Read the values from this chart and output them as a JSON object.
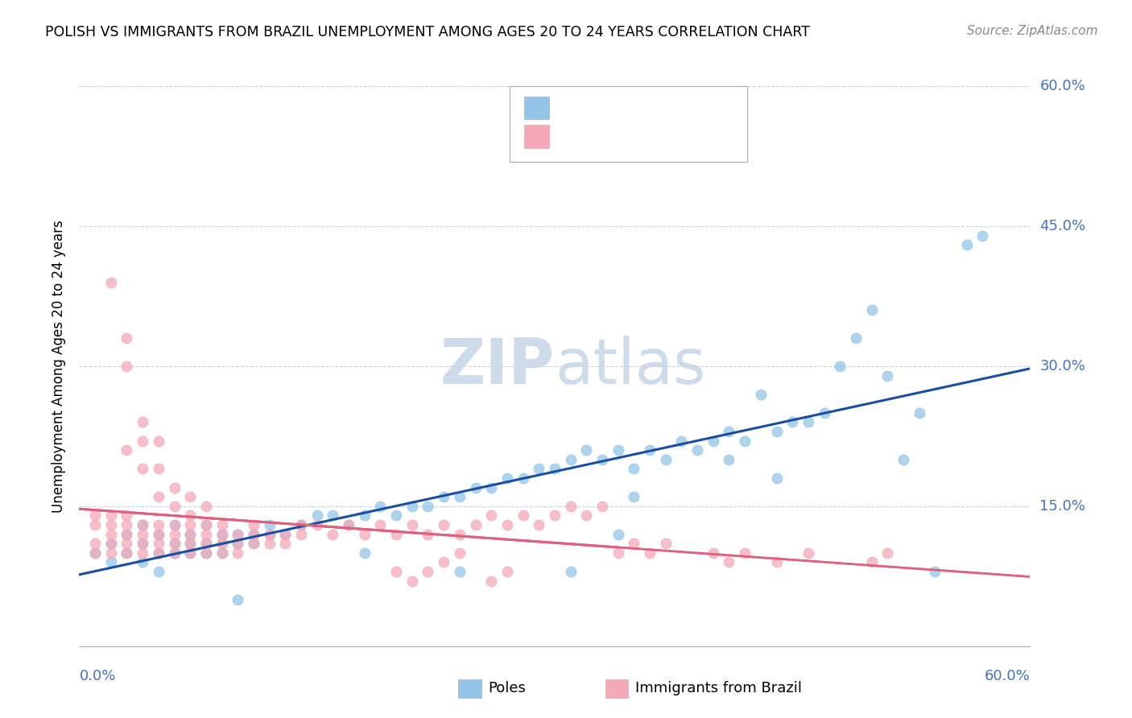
{
  "title": "POLISH VS IMMIGRANTS FROM BRAZIL UNEMPLOYMENT AMONG AGES 20 TO 24 YEARS CORRELATION CHART",
  "source": "Source: ZipAtlas.com",
  "ylabel": "Unemployment Among Ages 20 to 24 years",
  "xlim": [
    0.0,
    0.6
  ],
  "ylim": [
    0.0,
    0.6
  ],
  "yticks": [
    0.0,
    0.15,
    0.3,
    0.45,
    0.6
  ],
  "ytick_labels": [
    "",
    "15.0%",
    "30.0%",
    "45.0%",
    "60.0%"
  ],
  "color_poles": "#92c5e8",
  "color_brazil": "#f4a8b8",
  "poles_line_color": "#1a4fa0",
  "brazil_line_color": "#e06080",
  "brazil_dash_color": "#e08898",
  "watermark_color": "#c8d8e8",
  "poles_scatter": [
    [
      0.01,
      0.1
    ],
    [
      0.02,
      0.09
    ],
    [
      0.02,
      0.11
    ],
    [
      0.03,
      0.1
    ],
    [
      0.03,
      0.12
    ],
    [
      0.04,
      0.09
    ],
    [
      0.04,
      0.11
    ],
    [
      0.04,
      0.13
    ],
    [
      0.05,
      0.1
    ],
    [
      0.05,
      0.12
    ],
    [
      0.05,
      0.08
    ],
    [
      0.06,
      0.11
    ],
    [
      0.06,
      0.1
    ],
    [
      0.06,
      0.13
    ],
    [
      0.07,
      0.11
    ],
    [
      0.07,
      0.1
    ],
    [
      0.07,
      0.12
    ],
    [
      0.08,
      0.11
    ],
    [
      0.08,
      0.13
    ],
    [
      0.08,
      0.1
    ],
    [
      0.09,
      0.12
    ],
    [
      0.09,
      0.11
    ],
    [
      0.09,
      0.1
    ],
    [
      0.1,
      0.12
    ],
    [
      0.1,
      0.11
    ],
    [
      0.1,
      0.05
    ],
    [
      0.11,
      0.12
    ],
    [
      0.11,
      0.11
    ],
    [
      0.12,
      0.13
    ],
    [
      0.12,
      0.12
    ],
    [
      0.13,
      0.12
    ],
    [
      0.14,
      0.13
    ],
    [
      0.15,
      0.14
    ],
    [
      0.16,
      0.14
    ],
    [
      0.17,
      0.13
    ],
    [
      0.18,
      0.14
    ],
    [
      0.18,
      0.1
    ],
    [
      0.19,
      0.15
    ],
    [
      0.2,
      0.14
    ],
    [
      0.21,
      0.15
    ],
    [
      0.22,
      0.15
    ],
    [
      0.23,
      0.16
    ],
    [
      0.24,
      0.16
    ],
    [
      0.24,
      0.08
    ],
    [
      0.25,
      0.17
    ],
    [
      0.26,
      0.17
    ],
    [
      0.27,
      0.18
    ],
    [
      0.28,
      0.18
    ],
    [
      0.29,
      0.19
    ],
    [
      0.3,
      0.19
    ],
    [
      0.31,
      0.2
    ],
    [
      0.31,
      0.08
    ],
    [
      0.32,
      0.21
    ],
    [
      0.33,
      0.2
    ],
    [
      0.34,
      0.21
    ],
    [
      0.34,
      0.12
    ],
    [
      0.35,
      0.19
    ],
    [
      0.35,
      0.16
    ],
    [
      0.36,
      0.21
    ],
    [
      0.37,
      0.2
    ],
    [
      0.38,
      0.22
    ],
    [
      0.39,
      0.21
    ],
    [
      0.4,
      0.22
    ],
    [
      0.41,
      0.23
    ],
    [
      0.41,
      0.2
    ],
    [
      0.42,
      0.22
    ],
    [
      0.43,
      0.27
    ],
    [
      0.44,
      0.23
    ],
    [
      0.44,
      0.18
    ],
    [
      0.45,
      0.24
    ],
    [
      0.46,
      0.24
    ],
    [
      0.47,
      0.25
    ],
    [
      0.48,
      0.3
    ],
    [
      0.49,
      0.33
    ],
    [
      0.5,
      0.36
    ],
    [
      0.51,
      0.29
    ],
    [
      0.52,
      0.2
    ],
    [
      0.53,
      0.25
    ],
    [
      0.54,
      0.08
    ],
    [
      0.56,
      0.43
    ],
    [
      0.57,
      0.44
    ]
  ],
  "brazil_scatter": [
    [
      0.01,
      0.14
    ],
    [
      0.01,
      0.13
    ],
    [
      0.01,
      0.11
    ],
    [
      0.01,
      0.1
    ],
    [
      0.02,
      0.14
    ],
    [
      0.02,
      0.13
    ],
    [
      0.02,
      0.12
    ],
    [
      0.02,
      0.11
    ],
    [
      0.02,
      0.1
    ],
    [
      0.02,
      0.39
    ],
    [
      0.03,
      0.14
    ],
    [
      0.03,
      0.13
    ],
    [
      0.03,
      0.12
    ],
    [
      0.03,
      0.11
    ],
    [
      0.03,
      0.1
    ],
    [
      0.03,
      0.3
    ],
    [
      0.03,
      0.33
    ],
    [
      0.03,
      0.21
    ],
    [
      0.04,
      0.13
    ],
    [
      0.04,
      0.12
    ],
    [
      0.04,
      0.11
    ],
    [
      0.04,
      0.1
    ],
    [
      0.04,
      0.22
    ],
    [
      0.04,
      0.19
    ],
    [
      0.04,
      0.24
    ],
    [
      0.05,
      0.13
    ],
    [
      0.05,
      0.12
    ],
    [
      0.05,
      0.11
    ],
    [
      0.05,
      0.1
    ],
    [
      0.05,
      0.16
    ],
    [
      0.05,
      0.19
    ],
    [
      0.05,
      0.22
    ],
    [
      0.06,
      0.13
    ],
    [
      0.06,
      0.12
    ],
    [
      0.06,
      0.11
    ],
    [
      0.06,
      0.1
    ],
    [
      0.06,
      0.15
    ],
    [
      0.06,
      0.17
    ],
    [
      0.07,
      0.13
    ],
    [
      0.07,
      0.12
    ],
    [
      0.07,
      0.11
    ],
    [
      0.07,
      0.1
    ],
    [
      0.07,
      0.14
    ],
    [
      0.07,
      0.16
    ],
    [
      0.08,
      0.13
    ],
    [
      0.08,
      0.12
    ],
    [
      0.08,
      0.11
    ],
    [
      0.08,
      0.1
    ],
    [
      0.08,
      0.15
    ],
    [
      0.09,
      0.12
    ],
    [
      0.09,
      0.11
    ],
    [
      0.09,
      0.1
    ],
    [
      0.09,
      0.13
    ],
    [
      0.1,
      0.12
    ],
    [
      0.1,
      0.11
    ],
    [
      0.1,
      0.1
    ],
    [
      0.11,
      0.12
    ],
    [
      0.11,
      0.11
    ],
    [
      0.11,
      0.13
    ],
    [
      0.12,
      0.12
    ],
    [
      0.12,
      0.11
    ],
    [
      0.13,
      0.12
    ],
    [
      0.13,
      0.11
    ],
    [
      0.14,
      0.13
    ],
    [
      0.14,
      0.12
    ],
    [
      0.15,
      0.13
    ],
    [
      0.16,
      0.12
    ],
    [
      0.17,
      0.13
    ],
    [
      0.18,
      0.12
    ],
    [
      0.19,
      0.13
    ],
    [
      0.2,
      0.12
    ],
    [
      0.2,
      0.08
    ],
    [
      0.21,
      0.13
    ],
    [
      0.21,
      0.07
    ],
    [
      0.22,
      0.12
    ],
    [
      0.22,
      0.08
    ],
    [
      0.23,
      0.13
    ],
    [
      0.23,
      0.09
    ],
    [
      0.24,
      0.12
    ],
    [
      0.24,
      0.1
    ],
    [
      0.25,
      0.13
    ],
    [
      0.26,
      0.14
    ],
    [
      0.26,
      0.07
    ],
    [
      0.27,
      0.13
    ],
    [
      0.27,
      0.08
    ],
    [
      0.28,
      0.14
    ],
    [
      0.29,
      0.13
    ],
    [
      0.3,
      0.14
    ],
    [
      0.31,
      0.15
    ],
    [
      0.32,
      0.14
    ],
    [
      0.33,
      0.15
    ],
    [
      0.34,
      0.1
    ],
    [
      0.35,
      0.11
    ],
    [
      0.36,
      0.1
    ],
    [
      0.37,
      0.11
    ],
    [
      0.4,
      0.1
    ],
    [
      0.41,
      0.09
    ],
    [
      0.42,
      0.1
    ],
    [
      0.44,
      0.09
    ],
    [
      0.46,
      0.1
    ],
    [
      0.5,
      0.09
    ],
    [
      0.51,
      0.1
    ]
  ]
}
